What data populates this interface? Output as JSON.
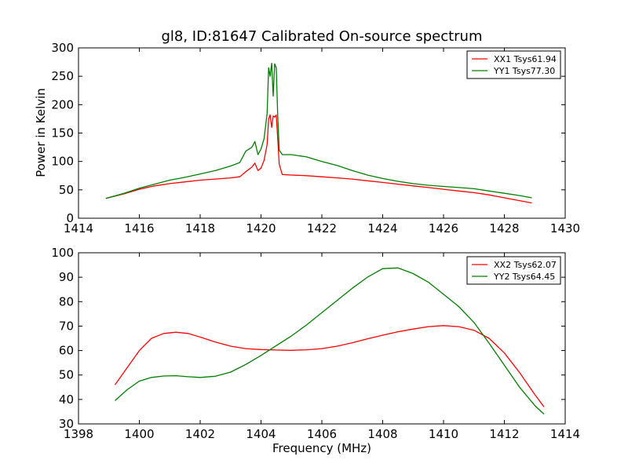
{
  "chart_data": [
    {
      "type": "line",
      "title": "gl8, ID:81647 Calibrated On-source spectrum",
      "xlabel": "",
      "ylabel": "Power in Kelvin",
      "xlim": [
        1414,
        1430
      ],
      "ylim": [
        0,
        300
      ],
      "xticks": [
        1414,
        1416,
        1418,
        1420,
        1422,
        1424,
        1426,
        1428,
        1430
      ],
      "yticks": [
        0,
        50,
        100,
        150,
        200,
        250,
        300
      ],
      "grid": false,
      "legend": "top-right",
      "series": [
        {
          "name": "XX1 Tsys61.94",
          "color": "#ff0000",
          "x": [
            1414.9,
            1415.5,
            1416,
            1416.5,
            1417,
            1417.5,
            1418,
            1418.5,
            1419,
            1419.3,
            1419.5,
            1419.7,
            1419.8,
            1419.9,
            1420.0,
            1420.1,
            1420.2,
            1420.25,
            1420.3,
            1420.35,
            1420.4,
            1420.45,
            1420.5,
            1420.55,
            1420.6,
            1420.7,
            1421,
            1421.5,
            1422,
            1422.5,
            1423,
            1423.5,
            1424,
            1424.5,
            1425,
            1425.5,
            1426,
            1426.5,
            1427,
            1427.5,
            1428,
            1428.5,
            1428.9
          ],
          "y": [
            35,
            43,
            51,
            57,
            61,
            64,
            67,
            69,
            71,
            73,
            82,
            90,
            97,
            84,
            88,
            102,
            130,
            175,
            182,
            160,
            180,
            178,
            182,
            140,
            95,
            77,
            76,
            75,
            73,
            71,
            69,
            66,
            63,
            60,
            57,
            54,
            51,
            48,
            45,
            41,
            36,
            31,
            27
          ]
        },
        {
          "name": "YY1 Tsys77.30",
          "color": "#008000",
          "x": [
            1414.9,
            1415.5,
            1416,
            1416.5,
            1417,
            1417.5,
            1418,
            1418.5,
            1419,
            1419.3,
            1419.5,
            1419.7,
            1419.8,
            1419.9,
            1420.0,
            1420.1,
            1420.2,
            1420.25,
            1420.3,
            1420.35,
            1420.4,
            1420.45,
            1420.5,
            1420.55,
            1420.6,
            1420.7,
            1421,
            1421.5,
            1422,
            1422.5,
            1423,
            1423.5,
            1424,
            1424.5,
            1425,
            1425.5,
            1426,
            1426.5,
            1427,
            1427.5,
            1428,
            1428.5,
            1428.9
          ],
          "y": [
            35,
            44,
            53,
            60,
            67,
            72,
            78,
            84,
            92,
            98,
            118,
            125,
            135,
            112,
            122,
            140,
            185,
            265,
            250,
            273,
            215,
            272,
            265,
            180,
            120,
            112,
            112,
            108,
            100,
            93,
            84,
            76,
            70,
            65,
            61,
            58,
            56,
            54,
            52,
            48,
            44,
            40,
            36
          ]
        }
      ]
    },
    {
      "type": "line",
      "title": "",
      "xlabel": "Frequency (MHz)",
      "ylabel": "",
      "xlim": [
        1398,
        1414
      ],
      "ylim": [
        30,
        100
      ],
      "xticks": [
        1398,
        1400,
        1402,
        1404,
        1406,
        1408,
        1410,
        1412,
        1414
      ],
      "yticks": [
        30,
        40,
        50,
        60,
        70,
        80,
        90,
        100
      ],
      "grid": false,
      "legend": "top-right",
      "series": [
        {
          "name": "XX2 Tsys62.07",
          "color": "#ff0000",
          "x": [
            1399.2,
            1399.6,
            1400.0,
            1400.4,
            1400.8,
            1401.2,
            1401.6,
            1402.0,
            1402.5,
            1403.0,
            1403.5,
            1404.0,
            1404.5,
            1405.0,
            1405.5,
            1406.0,
            1406.5,
            1407.0,
            1407.5,
            1408.0,
            1408.5,
            1409.0,
            1409.5,
            1410.0,
            1410.5,
            1411.0,
            1411.5,
            1412.0,
            1412.5,
            1413.0,
            1413.3
          ],
          "y": [
            46,
            53,
            60,
            65,
            67,
            67.5,
            67,
            65.5,
            63.5,
            61.8,
            60.8,
            60.4,
            60.2,
            60.1,
            60.3,
            60.8,
            61.8,
            63.2,
            64.8,
            66.3,
            67.7,
            68.8,
            69.8,
            70.2,
            69.8,
            68.3,
            65,
            59,
            51,
            42,
            37
          ]
        },
        {
          "name": "YY2 Tsys64.45",
          "color": "#008000",
          "x": [
            1399.2,
            1399.6,
            1400.0,
            1400.4,
            1400.8,
            1401.2,
            1401.6,
            1402.0,
            1402.5,
            1403.0,
            1403.5,
            1404.0,
            1404.5,
            1405.0,
            1405.5,
            1406.0,
            1406.5,
            1407.0,
            1407.5,
            1408.0,
            1408.5,
            1409.0,
            1409.5,
            1410.0,
            1410.5,
            1411.0,
            1411.5,
            1412.0,
            1412.5,
            1413.0,
            1413.3
          ],
          "y": [
            39.5,
            44,
            47.5,
            49,
            49.6,
            49.7,
            49.3,
            49,
            49.5,
            51.2,
            54.3,
            58,
            62,
            66,
            70.5,
            75.5,
            80.5,
            85.5,
            90,
            93.5,
            93.8,
            91.5,
            88,
            83,
            78,
            71.5,
            63,
            54,
            45,
            37.5,
            34
          ]
        }
      ]
    }
  ]
}
